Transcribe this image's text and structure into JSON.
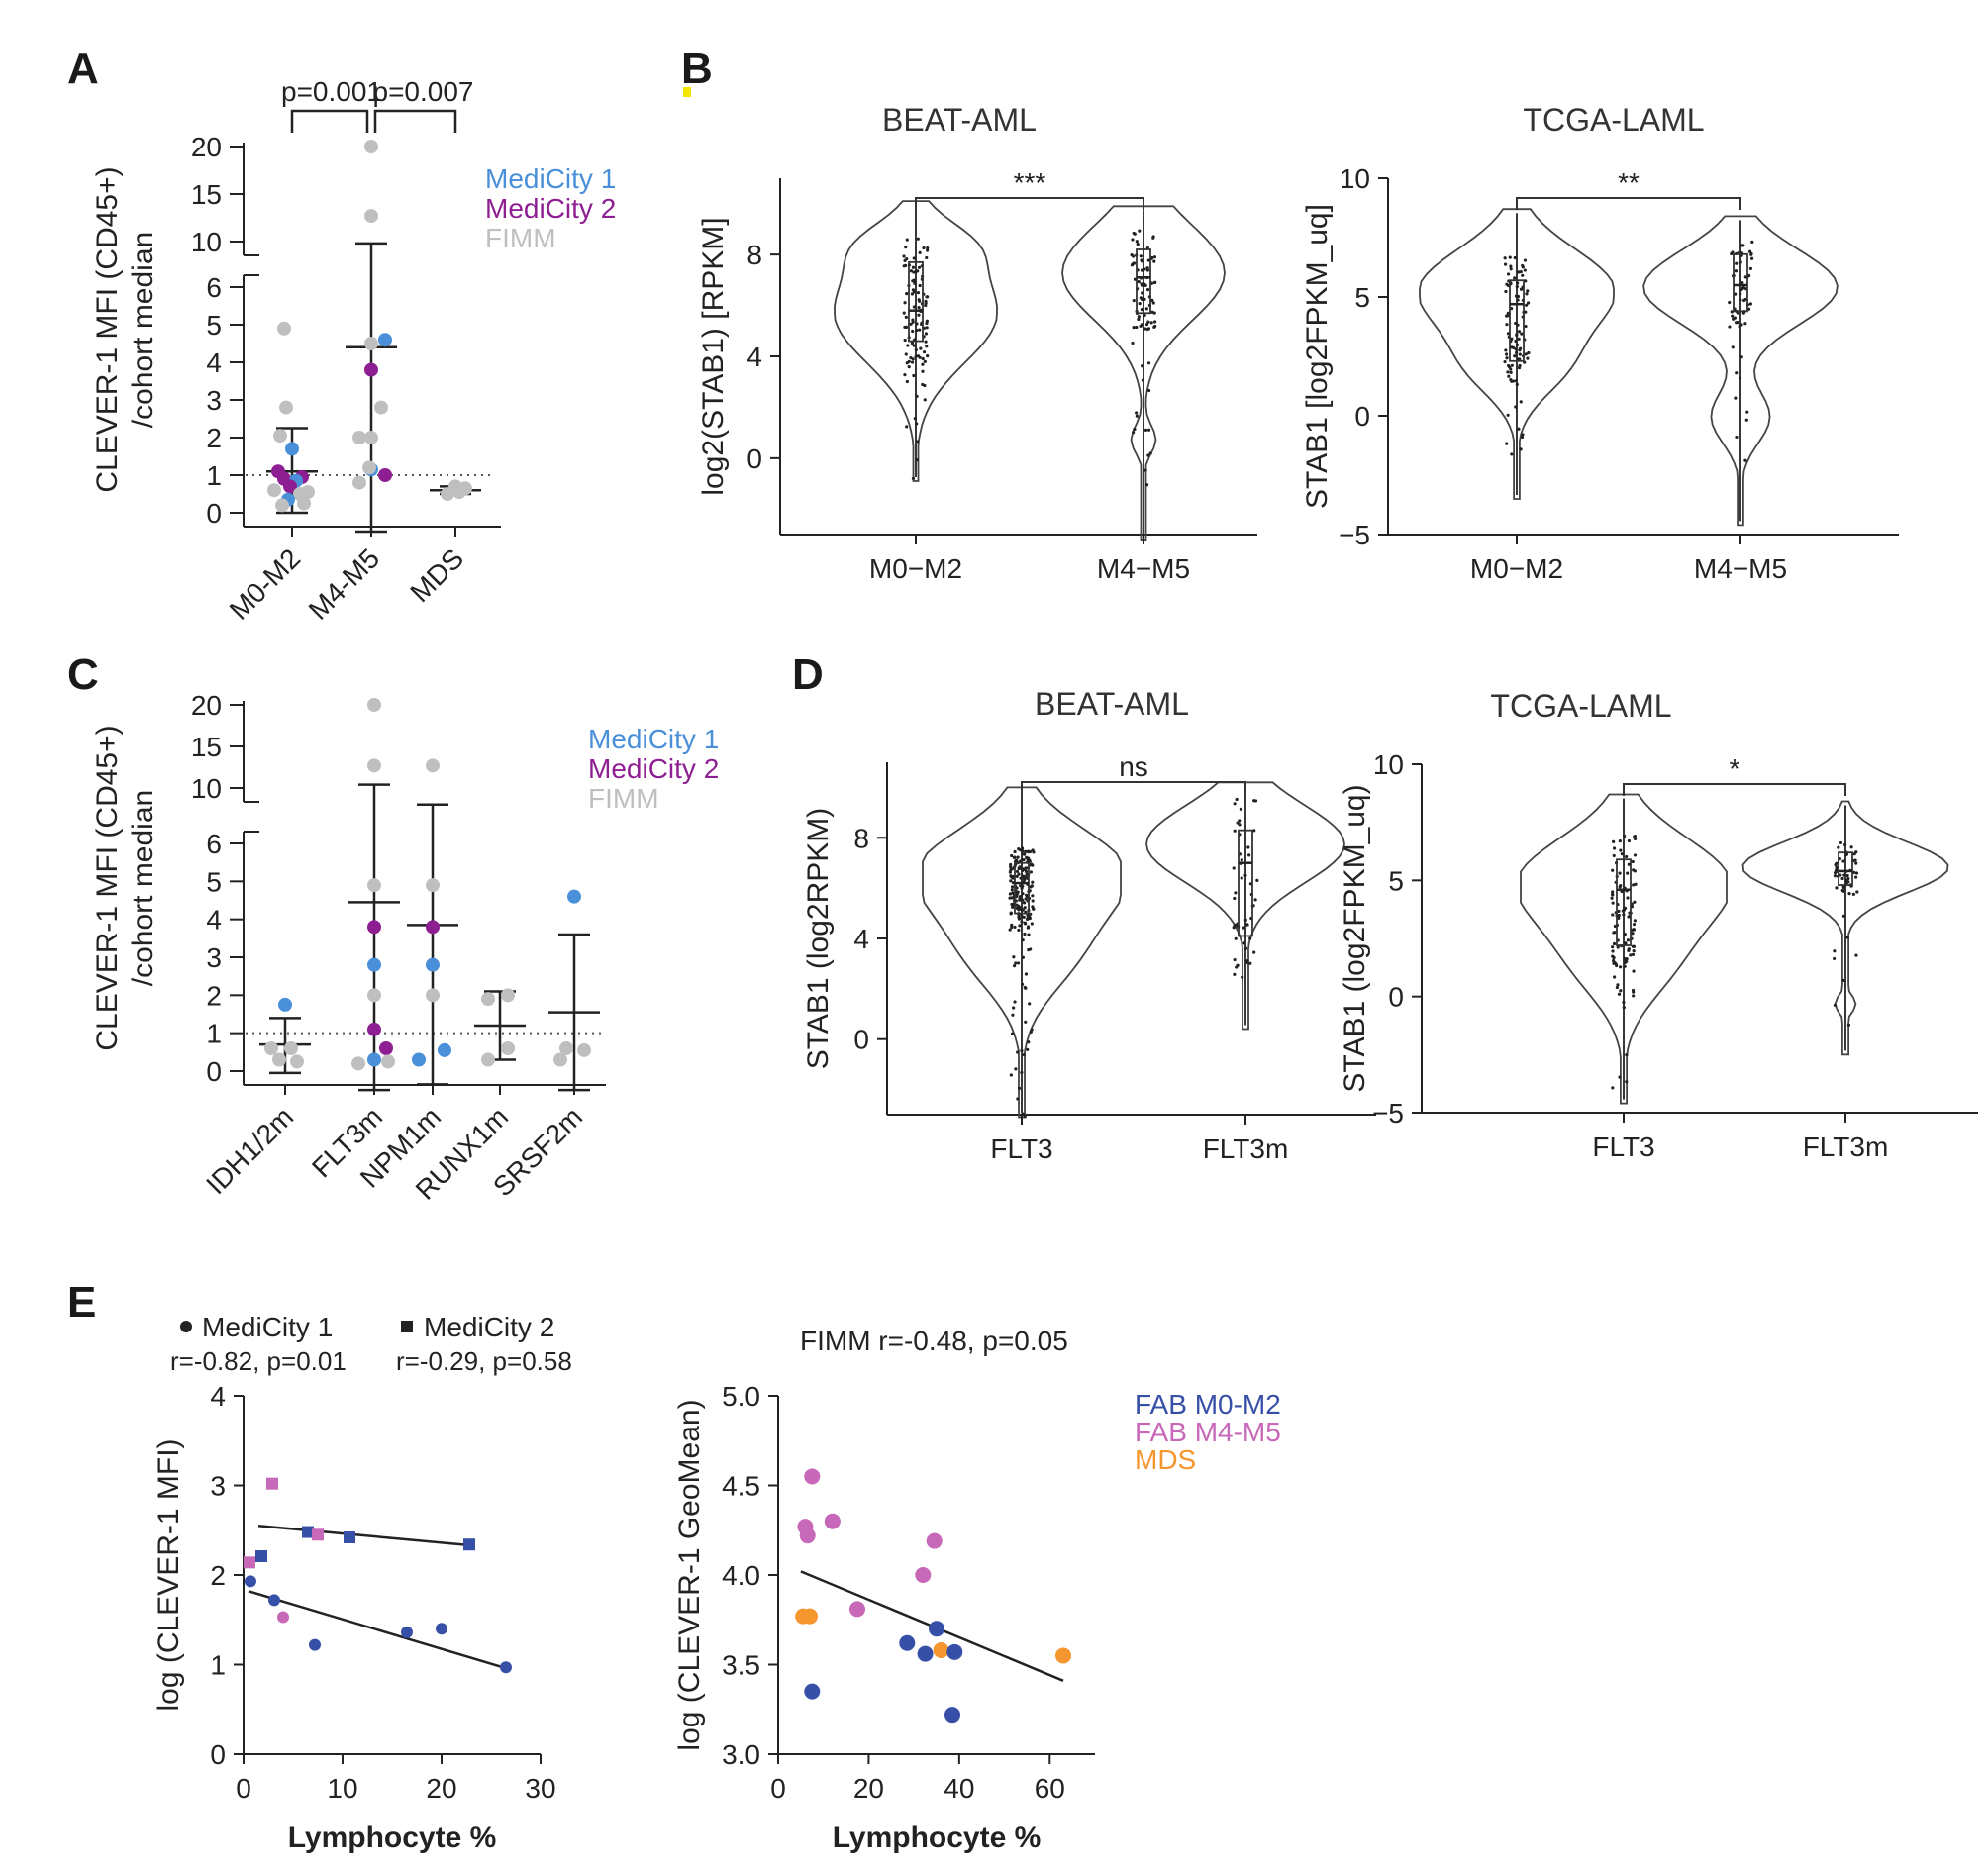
{
  "colors": {
    "medicity1": "#4a90d9",
    "medicity2": "#8e1f93",
    "fimm": "#bfbfbf",
    "fab_m0m2": "#3650a8",
    "fab_m4m5": "#c868b8",
    "mds": "#f5962e",
    "ink": "#222222"
  },
  "chart_data": [
    {
      "id": "A",
      "panel": "A",
      "type": "scatter",
      "ylabel": "CLEVER-1 MFI (CD45+)",
      "ylabel2": "/cohort median",
      "categories": [
        "M0-M2",
        "M4-M5",
        "MDS"
      ],
      "yticks_low": [
        "0",
        "1",
        "2",
        "3",
        "4",
        "5",
        "6"
      ],
      "yticks_high": [
        "10",
        "15",
        "20"
      ],
      "legend": [
        "MediCity 1",
        "MediCity 2",
        "FIMM"
      ],
      "pvalues": [
        "p=0.001",
        "p=0.007"
      ],
      "reference_line": 1,
      "groups": [
        {
          "mean": 1.1,
          "sd_low": 0.0,
          "sd_high": 2.25,
          "points": [
            {
              "y": 4.9,
              "c": "fimm",
              "dx": -0.2
            },
            {
              "y": 2.8,
              "c": "fimm",
              "dx": -0.15
            },
            {
              "y": 2.05,
              "c": "fimm",
              "dx": -0.3
            },
            {
              "y": 1.7,
              "c": "medicity1",
              "dx": 0.0
            },
            {
              "y": 1.1,
              "c": "medicity2",
              "dx": -0.35
            },
            {
              "y": 0.9,
              "c": "medicity2",
              "dx": -0.2
            },
            {
              "y": 0.95,
              "c": "medicity2",
              "dx": 0.25
            },
            {
              "y": 0.85,
              "c": "medicity1",
              "dx": 0.1
            },
            {
              "y": 0.7,
              "c": "medicity2",
              "dx": -0.05
            },
            {
              "y": 0.6,
              "c": "fimm",
              "dx": -0.45
            },
            {
              "y": 0.55,
              "c": "fimm",
              "dx": 0.4
            },
            {
              "y": 0.5,
              "c": "fimm",
              "dx": 0.2
            },
            {
              "y": 0.35,
              "c": "medicity1",
              "dx": -0.1
            },
            {
              "y": 0.25,
              "c": "fimm",
              "dx": 0.3
            },
            {
              "y": 0.2,
              "c": "fimm",
              "dx": -0.25
            }
          ]
        },
        {
          "mean": 4.4,
          "sd_low": -0.5,
          "sd_high": 9.8,
          "points": [
            {
              "y": 20,
              "c": "fimm",
              "dx": 0.0
            },
            {
              "y": 12.7,
              "c": "fimm",
              "dx": 0.0
            },
            {
              "y": 4.6,
              "c": "medicity1",
              "dx": 0.35
            },
            {
              "y": 4.5,
              "c": "fimm",
              "dx": 0.0
            },
            {
              "y": 3.8,
              "c": "medicity2",
              "dx": 0.0
            },
            {
              "y": 2.8,
              "c": "fimm",
              "dx": 0.25
            },
            {
              "y": 2.0,
              "c": "fimm",
              "dx": -0.3
            },
            {
              "y": 2.0,
              "c": "fimm",
              "dx": 0.0
            },
            {
              "y": 1.15,
              "c": "medicity1",
              "dx": 0.0
            },
            {
              "y": 1.0,
              "c": "medicity2",
              "dx": 0.35
            },
            {
              "y": 0.8,
              "c": "fimm",
              "dx": -0.3
            },
            {
              "y": 1.2,
              "c": "fimm",
              "dx": -0.05
            }
          ]
        },
        {
          "mean": 0.6,
          "sd_low": 0.5,
          "sd_high": 0.7,
          "points": [
            {
              "y": 0.7,
              "c": "fimm",
              "dx": 0.0
            },
            {
              "y": 0.65,
              "c": "fimm",
              "dx": 0.25
            },
            {
              "y": 0.5,
              "c": "fimm",
              "dx": -0.2
            },
            {
              "y": 0.55,
              "c": "fimm",
              "dx": 0.1
            }
          ]
        }
      ]
    },
    {
      "id": "B1",
      "panel": "B",
      "type": "violin",
      "title": "BEAT-AML",
      "ylabel": "log2(STAB1) [RPKM]",
      "categories": [
        "M0−M2",
        "M4−M5"
      ],
      "yticks": [
        "0",
        "4",
        "8"
      ],
      "ylim": [
        -3,
        11
      ],
      "significance": "***",
      "groups": [
        {
          "min": -0.9,
          "max": 10.1,
          "q1": 4.6,
          "median": 5.8,
          "q3": 7.7
        },
        {
          "min": -3.2,
          "max": 9.9,
          "q1": 5.7,
          "median": 7.1,
          "q3": 8.2
        }
      ]
    },
    {
      "id": "B2",
      "panel": "B",
      "type": "violin",
      "title": "TCGA-LAML",
      "ylabel": "STAB1 [log2FPKM_uq]",
      "categories": [
        "M0−M2",
        "M4−M5"
      ],
      "yticks": [
        "−5",
        "0",
        "5",
        "10"
      ],
      "ylim": [
        -5,
        10
      ],
      "significance": "**",
      "groups": [
        {
          "min": -3.5,
          "max": 8.7,
          "q1": 2.3,
          "median": 4.7,
          "q3": 5.7
        },
        {
          "min": -4.6,
          "max": 8.4,
          "q1": 4.4,
          "median": 5.5,
          "q3": 6.8
        }
      ]
    },
    {
      "id": "C",
      "panel": "C",
      "type": "scatter",
      "ylabel": "CLEVER-1 MFI (CD45+)",
      "ylabel2": "/cohort median",
      "categories": [
        "IDH1/2m",
        "FLT3m",
        "NPM1m",
        "RUNX1m",
        "SRSF2m"
      ],
      "yticks_low": [
        "0",
        "1",
        "2",
        "3",
        "4",
        "5",
        "6"
      ],
      "yticks_high": [
        "10",
        "15",
        "20"
      ],
      "legend": [
        "MediCity 1",
        "MediCity 2",
        "FIMM"
      ],
      "reference_line": 1,
      "groups": [
        {
          "mean": 0.7,
          "sd_low": -0.05,
          "sd_high": 1.4,
          "points": [
            {
              "y": 1.75,
              "c": "medicity1",
              "dx": 0.0
            },
            {
              "y": 0.6,
              "c": "fimm",
              "dx": -0.35
            },
            {
              "y": 0.3,
              "c": "fimm",
              "dx": -0.15
            },
            {
              "y": 0.25,
              "c": "fimm",
              "dx": 0.3
            },
            {
              "y": 0.6,
              "c": "fimm",
              "dx": 0.15
            }
          ]
        },
        {
          "mean": 4.45,
          "sd_low": -0.5,
          "sd_high": 10.4,
          "points": [
            {
              "y": 20,
              "c": "fimm",
              "dx": 0.0
            },
            {
              "y": 12.7,
              "c": "fimm",
              "dx": 0.0
            },
            {
              "y": 4.9,
              "c": "fimm",
              "dx": 0.0
            },
            {
              "y": 3.8,
              "c": "medicity2",
              "dx": 0.0
            },
            {
              "y": 2.8,
              "c": "medicity1",
              "dx": 0.0
            },
            {
              "y": 2.0,
              "c": "fimm",
              "dx": 0.0
            },
            {
              "y": 1.1,
              "c": "medicity2",
              "dx": 0.0
            },
            {
              "y": 0.6,
              "c": "medicity2",
              "dx": 0.3
            },
            {
              "y": 0.3,
              "c": "medicity1",
              "dx": 0.0
            },
            {
              "y": 0.25,
              "c": "fimm",
              "dx": 0.35
            },
            {
              "y": 0.2,
              "c": "fimm",
              "dx": -0.4
            }
          ]
        },
        {
          "mean": 3.85,
          "sd_low": -0.35,
          "sd_high": 8.0,
          "points": [
            {
              "y": 12.7,
              "c": "fimm",
              "dx": 0.0
            },
            {
              "y": 4.9,
              "c": "fimm",
              "dx": 0.0
            },
            {
              "y": 3.8,
              "c": "medicity2",
              "dx": 0.0
            },
            {
              "y": 2.8,
              "c": "medicity1",
              "dx": 0.0
            },
            {
              "y": 2.0,
              "c": "fimm",
              "dx": 0.0
            },
            {
              "y": 0.55,
              "c": "medicity1",
              "dx": 0.3
            },
            {
              "y": 0.3,
              "c": "medicity1",
              "dx": -0.35
            }
          ]
        },
        {
          "mean": 1.2,
          "sd_low": 0.3,
          "sd_high": 2.1,
          "points": [
            {
              "y": 2.0,
              "c": "fimm",
              "dx": 0.2
            },
            {
              "y": 1.9,
              "c": "fimm",
              "dx": -0.3
            },
            {
              "y": 0.6,
              "c": "fimm",
              "dx": 0.2
            },
            {
              "y": 0.3,
              "c": "fimm",
              "dx": -0.3
            }
          ]
        },
        {
          "mean": 1.55,
          "sd_low": -0.5,
          "sd_high": 3.6,
          "points": [
            {
              "y": 4.6,
              "c": "medicity1",
              "dx": 0.0
            },
            {
              "y": 0.6,
              "c": "fimm",
              "dx": -0.2
            },
            {
              "y": 0.55,
              "c": "fimm",
              "dx": 0.25
            },
            {
              "y": 0.3,
              "c": "fimm",
              "dx": -0.35
            }
          ]
        }
      ]
    },
    {
      "id": "D1",
      "panel": "D",
      "type": "violin",
      "title": "BEAT-AML",
      "ylabel": "STAB1 (log2RPKM)",
      "categories": [
        "FLT3",
        "FLT3m"
      ],
      "yticks": [
        "0",
        "4",
        "8"
      ],
      "ylim": [
        -3,
        11
      ],
      "significance": "ns",
      "groups": [
        {
          "min": -3.1,
          "max": 10.0,
          "q1": 5.0,
          "median": 6.2,
          "q3": 7.0
        },
        {
          "min": 0.4,
          "max": 10.2,
          "q1": 4.1,
          "median": 7.0,
          "q3": 8.3
        }
      ]
    },
    {
      "id": "D2",
      "panel": "D",
      "type": "violin",
      "title": "TCGA-LAML",
      "ylabel": "STAB1 (log2FPKM_uq)",
      "categories": [
        "FLT3",
        "FLT3m"
      ],
      "yticks": [
        "−5",
        "0",
        "5",
        "10"
      ],
      "ylim": [
        -5,
        10
      ],
      "significance": "*",
      "groups": [
        {
          "min": -4.6,
          "max": 8.7,
          "q1": 2.2,
          "median": 4.6,
          "q3": 5.9
        },
        {
          "min": -2.5,
          "max": 8.4,
          "q1": 4.8,
          "median": 5.4,
          "q3": 6.2
        }
      ]
    },
    {
      "id": "E1",
      "panel": "E",
      "type": "scatter",
      "xlabel": "Lymphocyte %",
      "ylabel": "log (CLEVER-1 MFI)",
      "xlim": [
        0,
        30
      ],
      "ylim": [
        0,
        4
      ],
      "xticks": [
        "0",
        "10",
        "20",
        "30"
      ],
      "yticks": [
        "0",
        "1",
        "2",
        "3",
        "4"
      ],
      "legend": [
        {
          "label": "MediCity 1",
          "stat": "r=-0.82, p=0.01",
          "marker": "circle"
        },
        {
          "label": "MediCity 2",
          "stat": "r=-0.29, p=0.58",
          "marker": "square"
        }
      ],
      "series": [
        {
          "name": "MediCity 1",
          "marker": "circle",
          "fit": {
            "x": [
              0.5,
              26.5
            ],
            "y": [
              1.82,
              0.96
            ]
          },
          "points": [
            {
              "x": 0.7,
              "y": 1.93,
              "c": "fab_m0m2"
            },
            {
              "x": 3.1,
              "y": 1.72,
              "c": "fab_m0m2"
            },
            {
              "x": 4.0,
              "y": 1.53,
              "c": "fab_m4m5"
            },
            {
              "x": 7.2,
              "y": 1.22,
              "c": "fab_m0m2"
            },
            {
              "x": 16.5,
              "y": 1.36,
              "c": "fab_m0m2"
            },
            {
              "x": 20.0,
              "y": 1.4,
              "c": "fab_m0m2"
            },
            {
              "x": 26.5,
              "y": 0.97,
              "c": "fab_m0m2"
            }
          ]
        },
        {
          "name": "MediCity 2",
          "marker": "square",
          "fit": {
            "x": [
              1.5,
              23.0
            ],
            "y": [
              2.55,
              2.33
            ]
          },
          "points": [
            {
              "x": 0.6,
              "y": 2.14,
              "c": "fab_m4m5"
            },
            {
              "x": 1.8,
              "y": 2.21,
              "c": "fab_m0m2"
            },
            {
              "x": 2.9,
              "y": 3.02,
              "c": "fab_m4m5"
            },
            {
              "x": 6.5,
              "y": 2.48,
              "c": "fab_m0m2"
            },
            {
              "x": 7.5,
              "y": 2.45,
              "c": "fab_m4m5"
            },
            {
              "x": 10.7,
              "y": 2.42,
              "c": "fab_m0m2"
            },
            {
              "x": 22.8,
              "y": 2.34,
              "c": "fab_m0m2"
            }
          ]
        }
      ]
    },
    {
      "id": "E2",
      "panel": "E",
      "type": "scatter",
      "title": "FIMM  r=-0.48, p=0.05",
      "xlabel": "Lymphocyte %",
      "ylabel": "log (CLEVER-1 GeoMean)",
      "xlim": [
        0,
        70
      ],
      "ylim": [
        3.0,
        5.0
      ],
      "xticks": [
        "0",
        "20",
        "40",
        "60"
      ],
      "yticks": [
        "3.0",
        "3.5",
        "4.0",
        "4.5",
        "5.0"
      ],
      "legend": [
        {
          "label": "FAB M0-M2",
          "c": "fab_m0m2"
        },
        {
          "label": "FAB M4-M5",
          "c": "fab_m4m5"
        },
        {
          "label": "MDS",
          "c": "mds"
        }
      ],
      "series": [
        {
          "name": "FIMM",
          "marker": "circle",
          "fit": {
            "x": [
              5,
              63
            ],
            "y": [
              4.02,
              3.41
            ]
          },
          "points": [
            {
              "x": 6.0,
              "y": 4.27,
              "c": "fab_m4m5"
            },
            {
              "x": 6.5,
              "y": 4.22,
              "c": "fab_m4m5"
            },
            {
              "x": 7.5,
              "y": 4.55,
              "c": "fab_m4m5"
            },
            {
              "x": 12.0,
              "y": 4.3,
              "c": "fab_m4m5"
            },
            {
              "x": 17.5,
              "y": 3.81,
              "c": "fab_m4m5"
            },
            {
              "x": 32.0,
              "y": 4.0,
              "c": "fab_m4m5"
            },
            {
              "x": 34.5,
              "y": 4.19,
              "c": "fab_m4m5"
            },
            {
              "x": 5.5,
              "y": 3.77,
              "c": "mds"
            },
            {
              "x": 7.0,
              "y": 3.77,
              "c": "mds"
            },
            {
              "x": 36.0,
              "y": 3.58,
              "c": "mds"
            },
            {
              "x": 63.0,
              "y": 3.55,
              "c": "mds"
            },
            {
              "x": 7.5,
              "y": 3.35,
              "c": "fab_m0m2"
            },
            {
              "x": 28.5,
              "y": 3.62,
              "c": "fab_m0m2"
            },
            {
              "x": 32.5,
              "y": 3.56,
              "c": "fab_m0m2"
            },
            {
              "x": 35.0,
              "y": 3.7,
              "c": "fab_m0m2"
            },
            {
              "x": 39.0,
              "y": 3.57,
              "c": "fab_m0m2"
            },
            {
              "x": 38.5,
              "y": 3.22,
              "c": "fab_m0m2"
            }
          ]
        }
      ]
    }
  ]
}
